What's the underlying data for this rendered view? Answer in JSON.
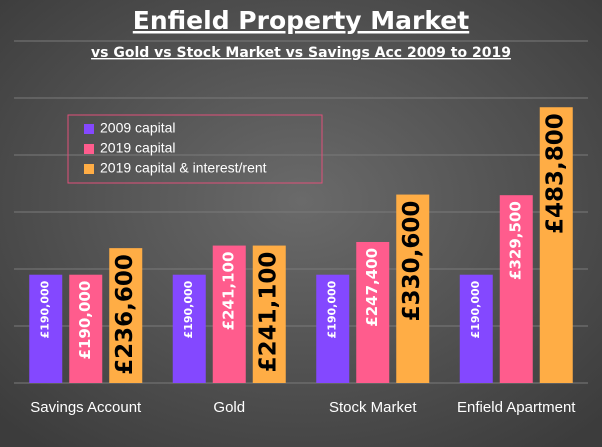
{
  "chart_data": {
    "type": "bar",
    "title": "Enfield Property Market",
    "subtitle": "vs Gold vs Stock Market vs Savings Acc 2009 to 2019",
    "categories": [
      "Savings Account",
      "Gold",
      "Stock Market",
      "Enfield Apartment"
    ],
    "series": [
      {
        "name": "2009 capital",
        "color": "#8448ff",
        "values": [
          190000,
          190000,
          190000,
          190000
        ],
        "value_labels": [
          "£190,000",
          "£190,000",
          "£190,000",
          "£190,000"
        ]
      },
      {
        "name": "2019 capital",
        "color": "#ff5c8d",
        "values": [
          190000,
          241100,
          247400,
          329500
        ],
        "value_labels": [
          "£190,000",
          "£241,100",
          "£247,400",
          "£329,500"
        ]
      },
      {
        "name": "2019 capital & interest/rent",
        "color": "#ffad45",
        "values": [
          236600,
          241100,
          330600,
          483800
        ],
        "value_labels": [
          "£236,600",
          "£241,100",
          "£330,600",
          "£483,800"
        ]
      }
    ],
    "ylim": [
      0,
      600000
    ],
    "yticks": [
      0,
      100000,
      200000,
      300000,
      400000,
      500000,
      600000
    ],
    "grid": true,
    "legend": "upper left"
  }
}
